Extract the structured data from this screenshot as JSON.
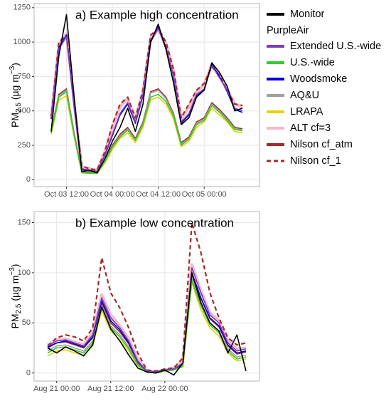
{
  "chart_data": [
    {
      "type": "line",
      "title": "a) Example high concentration",
      "ylabel": {
        "main": "PM",
        "sub": "2.5",
        "unit": " (µg m",
        "sup": "−3",
        "end": ")"
      },
      "categories": [
        null,
        null,
        "Oct 03 12:00",
        null,
        null,
        null,
        null,
        null,
        "Oct 04 00:00",
        null,
        null,
        null,
        null,
        null,
        "Oct 04 12:00",
        null,
        null,
        null,
        null,
        null,
        "Oct 05 00:00",
        null,
        null,
        null,
        null,
        null
      ],
      "ylim": [
        -50,
        1280
      ],
      "yticks": [
        0,
        250,
        500,
        750,
        1000,
        1250
      ],
      "grid": true,
      "legend": {
        "title": "PurpleAir",
        "position": "right"
      },
      "series": [
        {
          "name": "Monitor",
          "color": "#000000",
          "style": "solid",
          "values": [
            350,
            900,
            1200,
            600,
            60,
            70,
            50,
            150,
            280,
            380,
            520,
            350,
            550,
            1000,
            1130,
            950,
            700,
            400,
            450,
            600,
            650,
            850,
            780,
            680,
            500,
            520
          ]
        },
        {
          "name": "Extended U.S.-wide",
          "color": "#7b3fbf",
          "style": "solid",
          "values": [
            450,
            950,
            1040,
            540,
            80,
            70,
            60,
            180,
            330,
            480,
            560,
            420,
            620,
            1000,
            1100,
            950,
            760,
            420,
            480,
            620,
            660,
            830,
            740,
            650,
            520,
            500
          ]
        },
        {
          "name": "U.S.-wide",
          "color": "#33cc33",
          "style": "solid",
          "values": [
            340,
            600,
            640,
            320,
            52,
            48,
            46,
            130,
            235,
            310,
            360,
            285,
            400,
            600,
            620,
            570,
            460,
            250,
            295,
            400,
            430,
            540,
            490,
            430,
            365,
            355
          ]
        },
        {
          "name": "Woodsmoke",
          "color": "#0000dd",
          "style": "solid",
          "values": [
            440,
            960,
            1050,
            530,
            75,
            65,
            60,
            175,
            320,
            470,
            550,
            410,
            610,
            1010,
            1110,
            960,
            750,
            410,
            470,
            610,
            650,
            840,
            750,
            640,
            510,
            490
          ]
        },
        {
          "name": "AQ&U",
          "color": "#a0a0a0",
          "style": "solid",
          "values": [
            350,
            610,
            650,
            330,
            55,
            50,
            48,
            135,
            240,
            320,
            370,
            290,
            410,
            630,
            650,
            590,
            470,
            260,
            300,
            410,
            440,
            550,
            500,
            440,
            370,
            360
          ]
        },
        {
          "name": "LRAPA",
          "color": "#e6d200",
          "style": "solid",
          "values": [
            330,
            580,
            610,
            310,
            50,
            45,
            45,
            120,
            220,
            300,
            340,
            270,
            380,
            580,
            600,
            550,
            440,
            240,
            280,
            380,
            420,
            520,
            470,
            420,
            350,
            340
          ]
        },
        {
          "name": "ALT cf=3",
          "color": "#f4b8c8",
          "style": "wide",
          "values": [
            460,
            980,
            1060,
            560,
            90,
            80,
            70,
            200,
            380,
            530,
            590,
            440,
            640,
            1030,
            1090,
            990,
            790,
            440,
            530,
            640,
            690,
            840,
            760,
            660,
            550,
            530
          ]
        },
        {
          "name": "Nilson cf_atm",
          "color": "#a52a2a",
          "style": "solid",
          "values": [
            360,
            620,
            660,
            340,
            60,
            55,
            50,
            140,
            250,
            330,
            380,
            300,
            420,
            640,
            660,
            600,
            480,
            270,
            310,
            420,
            450,
            560,
            510,
            450,
            380,
            370
          ]
        },
        {
          "name": "Nilson cf_1",
          "color": "#a52a2a",
          "style": "dashed",
          "values": [
            450,
            1000,
            1050,
            550,
            100,
            80,
            70,
            200,
            400,
            550,
            600,
            450,
            650,
            1050,
            1100,
            1000,
            800,
            450,
            550,
            650,
            700,
            820,
            760,
            650,
            550,
            540
          ]
        }
      ]
    },
    {
      "type": "line",
      "title": "b) Example low concentration",
      "ylabel": {
        "main": "PM",
        "sub": "2.5",
        "unit": " (µg m",
        "sup": "−3",
        "end": ")"
      },
      "categories": [
        null,
        "Aug 21 00:00",
        null,
        null,
        null,
        null,
        null,
        "Aug 21 12:00",
        null,
        null,
        null,
        null,
        null,
        "Aug 22 00:00",
        null,
        null,
        null,
        null,
        null,
        null,
        null,
        null,
        null
      ],
      "ylim": [
        -8,
        161
      ],
      "yticks": [
        0,
        50,
        100,
        150
      ],
      "grid": true,
      "series": [
        {
          "color": "#000000",
          "style": "solid",
          "values": [
            25,
            20,
            26,
            22,
            17,
            28,
            66,
            44,
            32,
            18,
            5,
            1,
            0,
            3,
            -2,
            10,
            100,
            70,
            50,
            42,
            20,
            38,
            2
          ]
        },
        {
          "color": "#7b3fbf",
          "style": "solid",
          "values": [
            27,
            32,
            33,
            30,
            27,
            38,
            75,
            55,
            45,
            32,
            12,
            2,
            1,
            3,
            4,
            10,
            105,
            80,
            58,
            50,
            30,
            22,
            24
          ]
        },
        {
          "color": "#33cc33",
          "style": "solid",
          "values": [
            20,
            25,
            26,
            23,
            20,
            30,
            65,
            45,
            36,
            24,
            8,
            1,
            0,
            2,
            3,
            7,
            92,
            67,
            48,
            40,
            22,
            14,
            16
          ]
        },
        {
          "color": "#0000dd",
          "style": "solid",
          "values": [
            26,
            30,
            32,
            29,
            26,
            36,
            72,
            52,
            43,
            30,
            11,
            2,
            1,
            3,
            4,
            9,
            100,
            75,
            55,
            47,
            28,
            20,
            22
          ]
        },
        {
          "color": "#a0a0a0",
          "style": "solid",
          "values": [
            22,
            27,
            28,
            25,
            22,
            32,
            67,
            47,
            38,
            26,
            9,
            1,
            1,
            2,
            3,
            8,
            95,
            70,
            50,
            42,
            24,
            16,
            18
          ]
        },
        {
          "color": "#e6d200",
          "style": "solid",
          "values": [
            17,
            22,
            23,
            20,
            18,
            27,
            62,
            42,
            33,
            22,
            7,
            1,
            0,
            2,
            3,
            6,
            90,
            63,
            45,
            37,
            20,
            12,
            14
          ]
        },
        {
          "color": "#f4b8c8",
          "style": "wide",
          "values": [
            28,
            33,
            34,
            31,
            28,
            40,
            78,
            58,
            47,
            34,
            14,
            2,
            1,
            3,
            5,
            12,
            108,
            82,
            60,
            52,
            32,
            24,
            25
          ]
        },
        {
          "color": "#a52a2a",
          "style": "solid",
          "values": [
            25,
            30,
            31,
            28,
            25,
            35,
            70,
            50,
            41,
            29,
            10,
            2,
            1,
            3,
            4,
            9,
            98,
            74,
            54,
            46,
            27,
            19,
            21
          ]
        },
        {
          "color": "#a52a2a",
          "style": "dashed",
          "values": [
            27,
            35,
            38,
            36,
            32,
            45,
            115,
            80,
            65,
            45,
            20,
            3,
            2,
            4,
            5,
            15,
            150,
            120,
            80,
            55,
            35,
            28,
            30
          ]
        }
      ]
    }
  ]
}
